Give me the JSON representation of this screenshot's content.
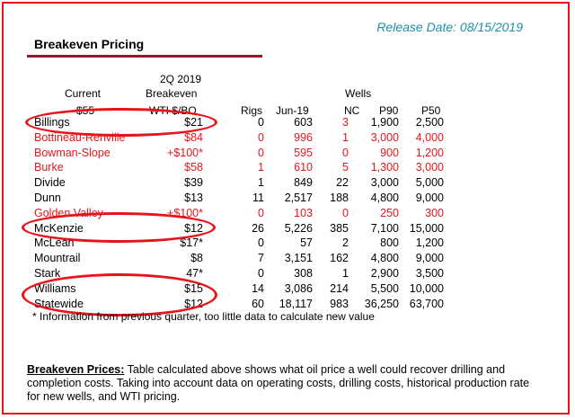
{
  "release_date": "Release Date: 08/15/2019",
  "title": "Breakeven Pricing",
  "headers": {
    "current": "Current",
    "current_sub": "$55",
    "quarter": "2Q 2019",
    "breakeven": "Breakeven",
    "breakeven_sub": "WTI $/BO",
    "rigs": "Rigs",
    "jun": "Jun-19",
    "wells": "Wells",
    "nc": "NC",
    "p90": "P90",
    "p50": "P50"
  },
  "rows": [
    {
      "county": "Billings",
      "price": "$21",
      "rigs": "0",
      "jun": "603",
      "nc": "3",
      "p90": "1,900",
      "p50": "2,500",
      "red": false,
      "nc_red": true
    },
    {
      "county": "Bottineau-Renville",
      "price": "$84",
      "rigs": "0",
      "jun": "996",
      "nc": "1",
      "p90": "3,000",
      "p50": "4,000",
      "red": true,
      "nc_red": true
    },
    {
      "county": "Bowman-Slope",
      "price": "+$100*",
      "rigs": "0",
      "jun": "595",
      "nc": "0",
      "p90": "900",
      "p50": "1,200",
      "red": true,
      "nc_red": true
    },
    {
      "county": "Burke",
      "price": "$58",
      "rigs": "1",
      "jun": "610",
      "nc": "5",
      "p90": "1,300",
      "p50": "3,000",
      "red": true,
      "nc_red": true
    },
    {
      "county": "Divide",
      "price": "$39",
      "rigs": "1",
      "jun": "849",
      "nc": "22",
      "p90": "3,000",
      "p50": "5,000",
      "red": false,
      "nc_red": false
    },
    {
      "county": "Dunn",
      "price": "$13",
      "rigs": "11",
      "jun": "2,517",
      "nc": "188",
      "p90": "4,800",
      "p50": "9,000",
      "red": false,
      "nc_red": false
    },
    {
      "county": "Golden Valley",
      "price": "+$100*",
      "rigs": "0",
      "jun": "103",
      "nc": "0",
      "p90": "250",
      "p50": "300",
      "red": true,
      "nc_red": true
    },
    {
      "county": "McKenzie",
      "price": "$12",
      "rigs": "26",
      "jun": "5,226",
      "nc": "385",
      "p90": "7,100",
      "p50": "15,000",
      "red": false,
      "nc_red": false
    },
    {
      "county": "McLean",
      "price": "$17*",
      "rigs": "0",
      "jun": "57",
      "nc": "2",
      "p90": "800",
      "p50": "1,200",
      "red": false,
      "nc_red": false
    },
    {
      "county": "Mountrail",
      "price": "$8",
      "rigs": "7",
      "jun": "3,151",
      "nc": "162",
      "p90": "4,800",
      "p50": "9,000",
      "red": false,
      "nc_red": false
    },
    {
      "county": "Stark",
      "price": "47*",
      "rigs": "0",
      "jun": "308",
      "nc": "1",
      "p90": "2,900",
      "p50": "3,500",
      "red": false,
      "nc_red": false
    },
    {
      "county": "Williams",
      "price": "$15",
      "rigs": "14",
      "jun": "3,086",
      "nc": "214",
      "p90": "5,500",
      "p50": "10,000",
      "red": false,
      "nc_red": false
    },
    {
      "county": "Statewide",
      "price": "$12",
      "rigs": "60",
      "jun": "18,117",
      "nc": "983",
      "p90": "36,250",
      "p50": "63,700",
      "red": false,
      "nc_red": false
    }
  ],
  "footnote": "* Information from previous quarter, too little data to calculate new value",
  "description": {
    "label": "Breakeven Prices:",
    "text": " Table calculated above shows what oil price a well could recover drilling and completion costs. Taking into account data on operating costs, drilling costs, historical production rate for new wells, and WTI pricing."
  },
  "colors": {
    "accent_red": "#e8141b",
    "release_blue": "#1f8fa6",
    "title_rule": "#8b1d2c"
  }
}
